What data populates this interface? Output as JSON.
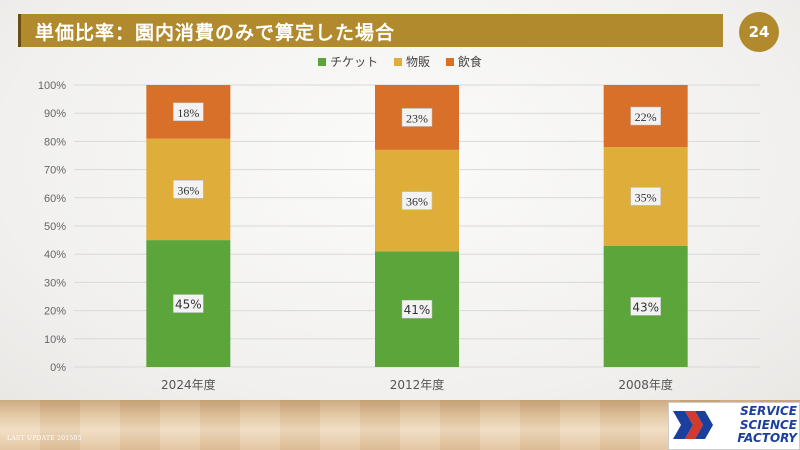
{
  "slide": {
    "title": "単価比率：園内消費のみで算定した場合",
    "page_number": "24",
    "footer_note": "LAST UPDATE 201505",
    "logo_lines": [
      "SERVICE",
      "SCIENCE",
      "FACTORY"
    ]
  },
  "colors": {
    "title_bar": "#b08a2c",
    "ticket": "#5ba53a",
    "goods": "#dfae3a",
    "food": "#d8702a"
  },
  "chart_data": {
    "type": "bar",
    "stacked": true,
    "percent": true,
    "categories": [
      "2024年度",
      "2012年度",
      "2008年度"
    ],
    "series": [
      {
        "name": "チケット",
        "values": [
          45,
          41,
          43
        ],
        "labels": [
          "45%",
          "41%",
          "43%"
        ],
        "color": "#5ba53a"
      },
      {
        "name": "物販",
        "values": [
          36,
          36,
          35
        ],
        "labels": [
          "36%",
          "36%",
          "35%"
        ],
        "color": "#dfae3a"
      },
      {
        "name": "飲食",
        "values": [
          18,
          23,
          22
        ],
        "labels": [
          "18%",
          "23%",
          "22%"
        ],
        "color": "#d8702a"
      }
    ],
    "ylim": [
      0,
      100
    ],
    "yticks": [
      "0%",
      "10%",
      "20%",
      "30%",
      "40%",
      "50%",
      "60%",
      "70%",
      "80%",
      "90%",
      "100%"
    ],
    "grid": true,
    "legend_position": "top"
  }
}
